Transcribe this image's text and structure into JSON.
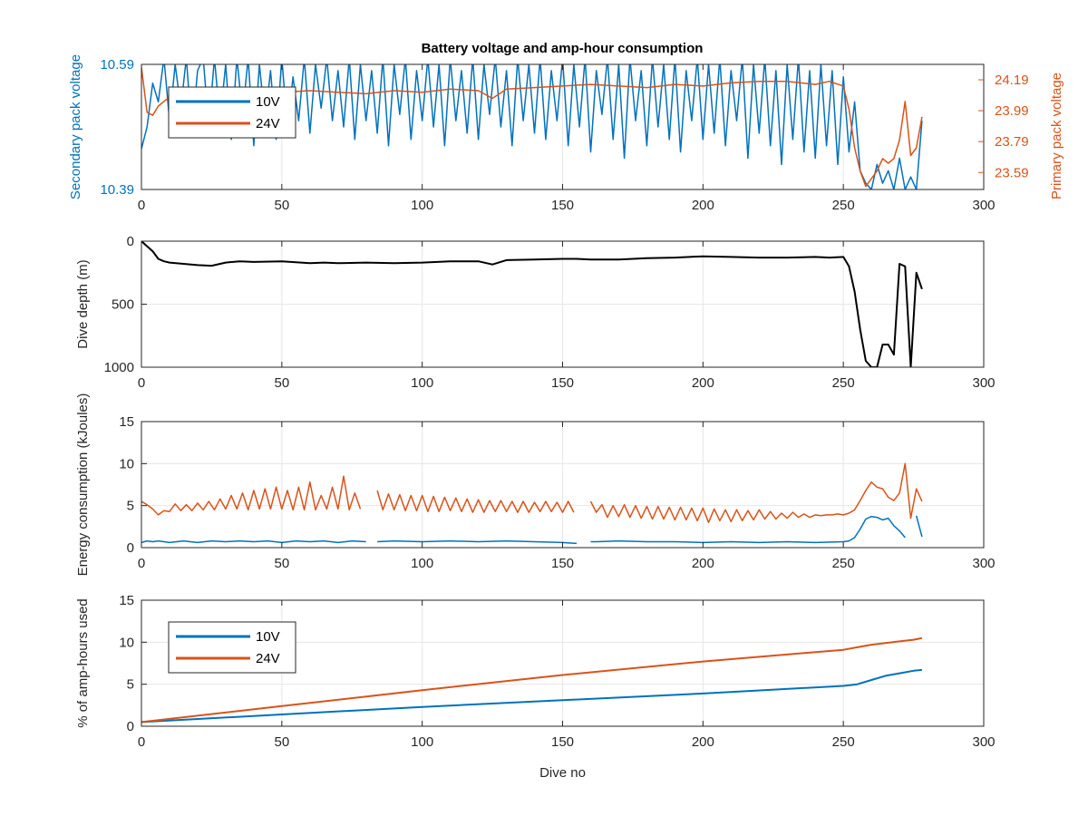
{
  "colors": {
    "c10": "#0072BD",
    "c24": "#D95319",
    "depth": "#000000",
    "grid": "#e6e6e6",
    "axis": "#262626"
  },
  "chart_data": [
    {
      "type": "line",
      "title": "Battery voltage and amp-hour consumption",
      "xlabel": "",
      "ylabel": "Secondary pack voltage",
      "ylabel_right": "Primary pack voltage",
      "xlim": [
        0,
        300
      ],
      "xticks": [
        "0",
        "50",
        "100",
        "150",
        "200",
        "250",
        "300"
      ],
      "ylim": [
        10.39,
        10.59
      ],
      "yticks": [
        "10.39",
        "10.59"
      ],
      "ylim_right": [
        23.48,
        24.29
      ],
      "yticks_right": [
        "23.59",
        "23.79",
        "23.99",
        "24.19"
      ],
      "grid": true,
      "legend": {
        "placement": "top-left",
        "entries": [
          "10V",
          "24V"
        ]
      },
      "series": [
        {
          "name": "10V",
          "axis": "left",
          "x": [
            0,
            2,
            4,
            6,
            8,
            10,
            12,
            14,
            16,
            18,
            20,
            22,
            24,
            26,
            28,
            30,
            32,
            34,
            36,
            38,
            40,
            42,
            44,
            46,
            48,
            50,
            52,
            54,
            56,
            58,
            60,
            62,
            64,
            66,
            68,
            70,
            72,
            74,
            76,
            78,
            80,
            82,
            84,
            86,
            88,
            90,
            92,
            94,
            96,
            98,
            100,
            102,
            104,
            106,
            108,
            110,
            112,
            114,
            116,
            118,
            120,
            122,
            124,
            126,
            128,
            130,
            132,
            134,
            136,
            138,
            140,
            142,
            144,
            146,
            148,
            150,
            152,
            154,
            156,
            158,
            160,
            162,
            164,
            166,
            168,
            170,
            172,
            174,
            176,
            178,
            180,
            182,
            184,
            186,
            188,
            190,
            192,
            194,
            196,
            198,
            200,
            202,
            204,
            206,
            208,
            210,
            212,
            214,
            216,
            218,
            220,
            222,
            224,
            226,
            228,
            230,
            232,
            234,
            236,
            238,
            240,
            242,
            244,
            246,
            248,
            250,
            252,
            254,
            256,
            258,
            260,
            262,
            264,
            266,
            268,
            270,
            272,
            274,
            276,
            278
          ],
          "y": [
            10.455,
            10.49,
            10.56,
            10.53,
            10.6,
            10.5,
            10.59,
            10.52,
            10.6,
            10.48,
            10.58,
            10.6,
            10.49,
            10.6,
            10.5,
            10.59,
            10.47,
            10.6,
            10.51,
            10.6,
            10.46,
            10.59,
            10.5,
            10.58,
            10.47,
            10.6,
            10.49,
            10.57,
            10.5,
            10.6,
            10.48,
            10.59,
            10.52,
            10.6,
            10.5,
            10.58,
            10.49,
            10.6,
            10.47,
            10.59,
            10.5,
            10.58,
            10.48,
            10.6,
            10.46,
            10.59,
            10.51,
            10.6,
            10.47,
            10.58,
            10.5,
            10.6,
            10.49,
            10.59,
            10.46,
            10.6,
            10.5,
            10.58,
            10.48,
            10.6,
            10.47,
            10.59,
            10.51,
            10.6,
            10.49,
            10.58,
            10.46,
            10.6,
            10.5,
            10.59,
            10.48,
            10.6,
            10.47,
            10.58,
            10.5,
            10.6,
            10.46,
            10.59,
            10.49,
            10.6,
            10.45,
            10.58,
            10.51,
            10.6,
            10.47,
            10.59,
            10.44,
            10.6,
            10.5,
            10.58,
            10.46,
            10.6,
            10.49,
            10.59,
            10.47,
            10.6,
            10.45,
            10.58,
            10.5,
            10.6,
            10.47,
            10.59,
            10.48,
            10.6,
            10.46,
            10.58,
            10.5,
            10.6,
            10.44,
            10.59,
            10.48,
            10.6,
            10.46,
            10.58,
            10.43,
            10.59,
            10.47,
            10.6,
            10.45,
            10.58,
            10.44,
            10.59,
            10.46,
            10.58,
            10.43,
            10.57,
            10.45,
            10.53,
            10.42,
            10.4,
            10.39,
            10.43,
            10.4,
            10.42,
            10.39,
            10.44,
            10.39,
            10.41,
            10.39,
            10.5
          ]
        },
        {
          "name": "24V",
          "axis": "right",
          "x": [
            0,
            2,
            4,
            6,
            10,
            15,
            20,
            30,
            40,
            50,
            60,
            70,
            80,
            90,
            100,
            110,
            120,
            125,
            130,
            140,
            150,
            160,
            170,
            180,
            190,
            200,
            210,
            220,
            230,
            240,
            245,
            250,
            252,
            254,
            256,
            258,
            260,
            262,
            264,
            266,
            268,
            270,
            272,
            274,
            276,
            278
          ],
          "y": [
            24.27,
            23.98,
            23.96,
            24.02,
            24.08,
            24.12,
            24.11,
            24.13,
            24.12,
            24.11,
            24.12,
            24.11,
            24.1,
            24.12,
            24.11,
            24.13,
            24.12,
            24.07,
            24.13,
            24.14,
            24.15,
            24.16,
            24.15,
            24.14,
            24.16,
            24.15,
            24.17,
            24.18,
            24.18,
            24.16,
            24.18,
            24.15,
            24.0,
            23.75,
            23.6,
            23.5,
            23.55,
            23.6,
            23.68,
            23.65,
            23.68,
            23.8,
            24.05,
            23.7,
            23.75,
            23.95
          ]
        }
      ]
    },
    {
      "type": "line",
      "xlabel": "",
      "ylabel": "Dive depth (m)",
      "xlim": [
        0,
        300
      ],
      "xticks": [
        "0",
        "50",
        "100",
        "150",
        "200",
        "250",
        "300"
      ],
      "ylim": [
        0,
        1000
      ],
      "yreversed": true,
      "yticks": [
        "0",
        "500",
        "1000"
      ],
      "grid": true,
      "series": [
        {
          "x": [
            0,
            2,
            4,
            6,
            8,
            10,
            15,
            20,
            25,
            30,
            35,
            40,
            50,
            60,
            65,
            70,
            80,
            90,
            100,
            110,
            120,
            125,
            130,
            140,
            150,
            155,
            160,
            170,
            180,
            190,
            200,
            210,
            220,
            230,
            240,
            245,
            250,
            252,
            254,
            256,
            258,
            260,
            262,
            264,
            266,
            268,
            270,
            272,
            274,
            276,
            278
          ],
          "y": [
            0,
            40,
            80,
            140,
            160,
            170,
            180,
            190,
            195,
            170,
            160,
            165,
            160,
            175,
            170,
            175,
            170,
            175,
            170,
            160,
            160,
            185,
            150,
            145,
            140,
            140,
            145,
            145,
            135,
            130,
            120,
            125,
            130,
            130,
            125,
            130,
            125,
            200,
            400,
            700,
            950,
            1000,
            1000,
            820,
            820,
            900,
            180,
            200,
            1000,
            250,
            380
          ]
        }
      ]
    },
    {
      "type": "line",
      "xlabel": "",
      "ylabel": "Energy consumption (kJoules)",
      "xlim": [
        0,
        300
      ],
      "xticks": [
        "0",
        "50",
        "100",
        "150",
        "200",
        "250",
        "300"
      ],
      "ylim": [
        0,
        15
      ],
      "yticks": [
        "0",
        "5",
        "10",
        "15"
      ],
      "grid": true,
      "series": [
        {
          "name": "24V",
          "x": [
            0,
            2,
            4,
            6,
            8,
            10,
            12,
            14,
            16,
            18,
            20,
            22,
            24,
            26,
            28,
            30,
            32,
            34,
            36,
            38,
            40,
            42,
            44,
            46,
            48,
            50,
            52,
            54,
            56,
            58,
            60,
            62,
            64,
            66,
            68,
            70,
            72,
            74,
            76,
            78,
            80,
            82,
            84,
            86,
            88,
            90,
            92,
            94,
            96,
            98,
            100,
            102,
            104,
            106,
            108,
            110,
            112,
            114,
            116,
            118,
            120,
            122,
            124,
            126,
            128,
            130,
            132,
            134,
            136,
            138,
            140,
            142,
            144,
            146,
            148,
            150,
            152,
            154,
            156,
            158,
            160,
            162,
            164,
            166,
            168,
            170,
            172,
            174,
            176,
            178,
            180,
            182,
            184,
            186,
            188,
            190,
            192,
            194,
            196,
            198,
            200,
            202,
            204,
            206,
            208,
            210,
            212,
            214,
            216,
            218,
            220,
            222,
            224,
            226,
            228,
            230,
            232,
            234,
            236,
            238,
            240,
            242,
            244,
            246,
            248,
            250,
            252,
            254,
            256,
            258,
            260,
            262,
            264,
            266,
            268,
            270,
            272,
            274,
            276,
            278
          ],
          "y": [
            5.5,
            5.1,
            4.6,
            3.9,
            4.4,
            4.3,
            5.2,
            4.4,
            5.1,
            4.4,
            5.3,
            4.5,
            5.5,
            4.5,
            5.8,
            4.6,
            6.2,
            4.6,
            6.5,
            4.5,
            6.8,
            4.6,
            7.0,
            4.6,
            7.2,
            4.6,
            6.8,
            4.5,
            7.2,
            4.5,
            7.8,
            4.5,
            6.2,
            4.6,
            7.2,
            4.6,
            8.5,
            4.5,
            6.5,
            4.6,
            null,
            null,
            6.8,
            4.5,
            6.4,
            4.5,
            6.3,
            4.4,
            6.2,
            4.4,
            6.2,
            4.3,
            6.1,
            4.3,
            6.0,
            4.4,
            5.9,
            4.3,
            5.8,
            4.2,
            5.7,
            4.2,
            5.6,
            4.3,
            5.6,
            4.3,
            5.5,
            4.2,
            5.5,
            4.2,
            5.4,
            4.3,
            5.5,
            4.3,
            5.4,
            4.2,
            5.5,
            4.2,
            null,
            null,
            5.5,
            4.2,
            5.1,
            3.6,
            5.0,
            3.7,
            5.1,
            3.6,
            5.0,
            3.5,
            4.9,
            3.4,
            4.9,
            3.4,
            4.8,
            3.3,
            4.8,
            3.3,
            4.7,
            3.2,
            4.7,
            3.0,
            4.6,
            3.2,
            4.5,
            3.1,
            4.5,
            3.2,
            4.4,
            3.3,
            4.5,
            3.4,
            4.3,
            3.4,
            4.1,
            3.5,
            4.2,
            3.6,
            4.0,
            3.6,
            3.9,
            3.8,
            3.9,
            3.9,
            4.0,
            3.9,
            4.1,
            4.5,
            5.6,
            6.8,
            7.8,
            7.2,
            7.0,
            6.0,
            5.6,
            6.5,
            10.0,
            3.5,
            7.0,
            5.5
          ]
        },
        {
          "name": "10V",
          "x": [
            0,
            2,
            4,
            6,
            8,
            10,
            15,
            20,
            25,
            30,
            35,
            40,
            45,
            50,
            55,
            60,
            65,
            70,
            75,
            80,
            82,
            84,
            90,
            100,
            110,
            120,
            130,
            140,
            150,
            155,
            158,
            160,
            162,
            170,
            180,
            190,
            200,
            210,
            220,
            230,
            240,
            250,
            252,
            254,
            256,
            258,
            260,
            262,
            264,
            266,
            268,
            270,
            272,
            274,
            276,
            278
          ],
          "y": [
            0.6,
            0.8,
            0.7,
            0.8,
            0.7,
            0.6,
            0.8,
            0.6,
            0.8,
            0.7,
            0.8,
            0.7,
            0.8,
            0.6,
            0.8,
            0.7,
            0.8,
            0.6,
            0.8,
            0.7,
            null,
            0.7,
            0.8,
            0.7,
            0.8,
            0.7,
            0.8,
            0.7,
            0.6,
            0.5,
            null,
            0.7,
            0.7,
            0.8,
            0.7,
            0.7,
            0.6,
            0.7,
            0.6,
            0.7,
            0.6,
            0.7,
            0.8,
            1.2,
            2.2,
            3.4,
            3.7,
            3.6,
            3.3,
            3.5,
            2.6,
            2.0,
            1.2,
            null,
            3.8,
            1.3
          ]
        }
      ]
    },
    {
      "type": "line",
      "xlabel": "Dive no",
      "ylabel": "% of amp-hours used",
      "xlim": [
        0,
        300
      ],
      "xticks": [
        "0",
        "50",
        "100",
        "150",
        "200",
        "250",
        "300"
      ],
      "ylim": [
        0,
        15
      ],
      "yticks": [
        "0",
        "5",
        "10",
        "15"
      ],
      "grid": true,
      "legend": {
        "placement": "top-left",
        "entries": [
          "10V",
          "24V"
        ]
      },
      "series": [
        {
          "name": "10V",
          "x": [
            0,
            50,
            100,
            150,
            200,
            250,
            255,
            260,
            265,
            270,
            275,
            278
          ],
          "y": [
            0.5,
            1.4,
            2.3,
            3.1,
            3.9,
            4.8,
            5.0,
            5.5,
            6.0,
            6.3,
            6.6,
            6.7
          ]
        },
        {
          "name": "24V",
          "x": [
            0,
            50,
            100,
            150,
            200,
            250,
            255,
            260,
            265,
            270,
            275,
            278
          ],
          "y": [
            0.5,
            2.4,
            4.3,
            6.1,
            7.7,
            9.1,
            9.4,
            9.7,
            9.9,
            10.1,
            10.3,
            10.5
          ]
        }
      ]
    }
  ]
}
